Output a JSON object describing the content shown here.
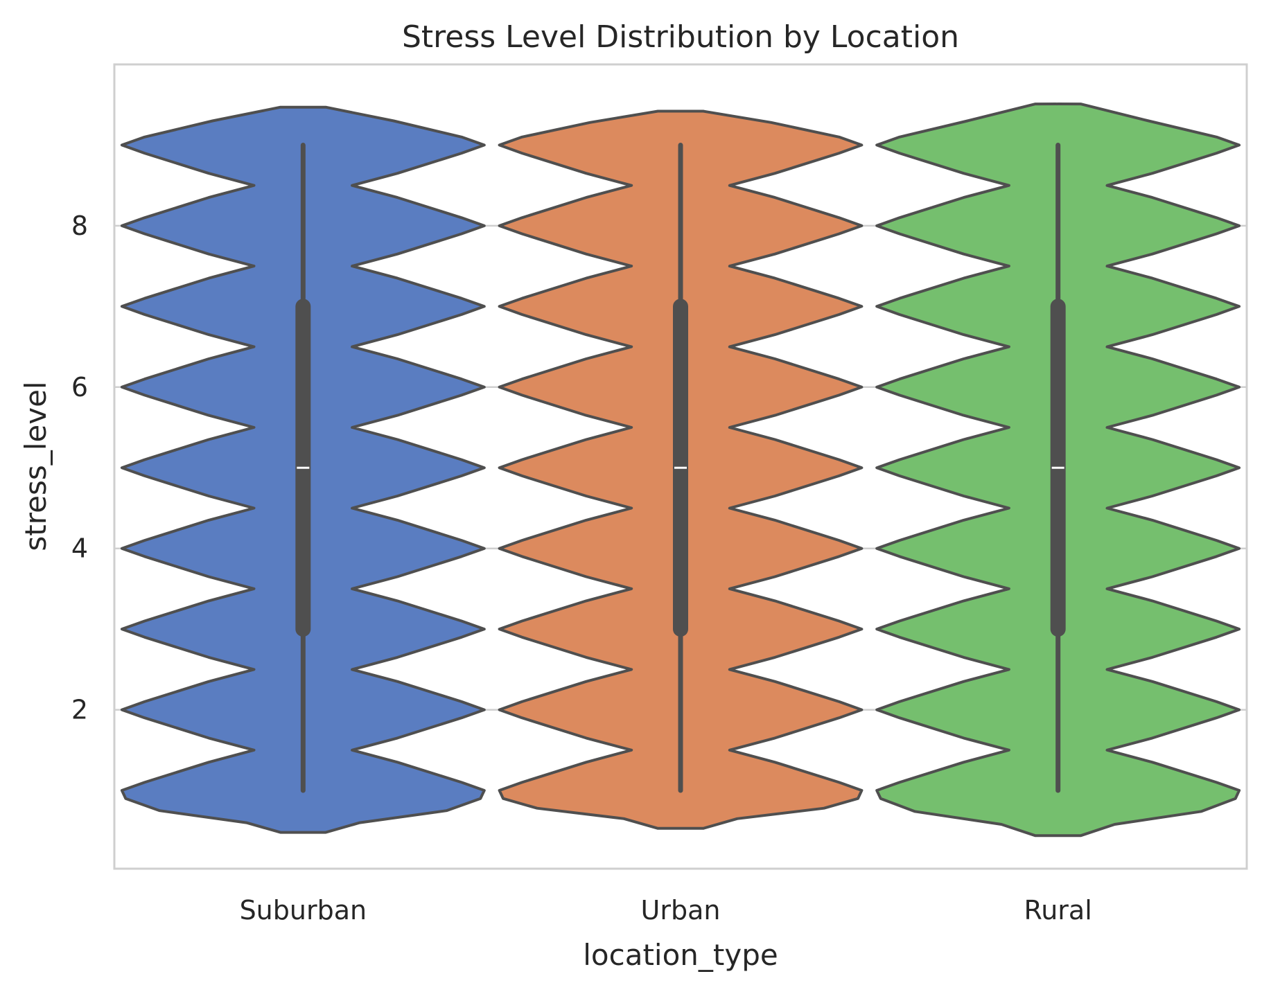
{
  "chart_data": {
    "type": "violin",
    "title": "Stress Level Distribution by Location",
    "xlabel": "location_type",
    "ylabel": "stress_level",
    "categories": [
      "Suburban",
      "Urban",
      "Rural"
    ],
    "colors": [
      "#5a7dc1",
      "#dc8a5e",
      "#75bf6e"
    ],
    "ylim": [
      0.03,
      10.0
    ],
    "yticks": [
      2,
      4,
      6,
      8
    ],
    "yticklabels": [
      "2",
      "4",
      "6",
      "8"
    ],
    "grid": "horizontal",
    "violins": [
      {
        "name": "Suburban",
        "kde_range": [
          0.48,
          9.47
        ],
        "min": 1,
        "q1": 3,
        "median": 5,
        "q3": 7,
        "max": 9,
        "profile": [
          [
            0.48,
            0.06
          ],
          [
            0.6,
            0.15
          ],
          [
            0.75,
            0.38
          ],
          [
            0.9,
            0.47
          ],
          [
            1.0,
            0.48
          ],
          [
            1.1,
            0.42
          ],
          [
            1.35,
            0.25
          ],
          [
            1.5,
            0.13
          ],
          [
            1.65,
            0.25
          ],
          [
            1.9,
            0.42
          ],
          [
            2.0,
            0.48
          ],
          [
            2.1,
            0.42
          ],
          [
            2.35,
            0.25
          ],
          [
            2.5,
            0.13
          ],
          [
            2.65,
            0.25
          ],
          [
            2.9,
            0.42
          ],
          [
            3.0,
            0.48
          ],
          [
            3.1,
            0.42
          ],
          [
            3.35,
            0.25
          ],
          [
            3.5,
            0.13
          ],
          [
            3.65,
            0.25
          ],
          [
            3.9,
            0.42
          ],
          [
            4.0,
            0.48
          ],
          [
            4.1,
            0.42
          ],
          [
            4.35,
            0.25
          ],
          [
            4.5,
            0.13
          ],
          [
            4.65,
            0.25
          ],
          [
            4.9,
            0.42
          ],
          [
            5.0,
            0.48
          ],
          [
            5.1,
            0.42
          ],
          [
            5.35,
            0.25
          ],
          [
            5.5,
            0.13
          ],
          [
            5.65,
            0.25
          ],
          [
            5.9,
            0.42
          ],
          [
            6.0,
            0.48
          ],
          [
            6.1,
            0.42
          ],
          [
            6.35,
            0.25
          ],
          [
            6.5,
            0.13
          ],
          [
            6.65,
            0.25
          ],
          [
            6.9,
            0.42
          ],
          [
            7.0,
            0.48
          ],
          [
            7.1,
            0.42
          ],
          [
            7.35,
            0.25
          ],
          [
            7.5,
            0.13
          ],
          [
            7.65,
            0.25
          ],
          [
            7.9,
            0.42
          ],
          [
            8.0,
            0.48
          ],
          [
            8.1,
            0.42
          ],
          [
            8.35,
            0.25
          ],
          [
            8.5,
            0.13
          ],
          [
            8.65,
            0.25
          ],
          [
            8.9,
            0.42
          ],
          [
            9.0,
            0.48
          ],
          [
            9.1,
            0.42
          ],
          [
            9.3,
            0.24
          ],
          [
            9.47,
            0.06
          ]
        ]
      },
      {
        "name": "Urban",
        "kde_range": [
          0.53,
          9.42
        ],
        "min": 1,
        "q1": 3,
        "median": 5,
        "q3": 7,
        "max": 9,
        "profile": [
          [
            0.53,
            0.06
          ],
          [
            0.65,
            0.15
          ],
          [
            0.78,
            0.38
          ],
          [
            0.9,
            0.47
          ],
          [
            1.0,
            0.48
          ],
          [
            1.1,
            0.42
          ],
          [
            1.35,
            0.25
          ],
          [
            1.5,
            0.13
          ],
          [
            1.65,
            0.25
          ],
          [
            1.9,
            0.42
          ],
          [
            2.0,
            0.48
          ],
          [
            2.1,
            0.42
          ],
          [
            2.35,
            0.25
          ],
          [
            2.5,
            0.13
          ],
          [
            2.65,
            0.25
          ],
          [
            2.9,
            0.42
          ],
          [
            3.0,
            0.48
          ],
          [
            3.1,
            0.42
          ],
          [
            3.35,
            0.25
          ],
          [
            3.5,
            0.13
          ],
          [
            3.65,
            0.25
          ],
          [
            3.9,
            0.42
          ],
          [
            4.0,
            0.48
          ],
          [
            4.1,
            0.42
          ],
          [
            4.35,
            0.25
          ],
          [
            4.5,
            0.13
          ],
          [
            4.65,
            0.25
          ],
          [
            4.9,
            0.42
          ],
          [
            5.0,
            0.48
          ],
          [
            5.1,
            0.42
          ],
          [
            5.35,
            0.25
          ],
          [
            5.5,
            0.13
          ],
          [
            5.65,
            0.25
          ],
          [
            5.9,
            0.42
          ],
          [
            6.0,
            0.48
          ],
          [
            6.1,
            0.42
          ],
          [
            6.35,
            0.25
          ],
          [
            6.5,
            0.13
          ],
          [
            6.65,
            0.25
          ],
          [
            6.9,
            0.42
          ],
          [
            7.0,
            0.48
          ],
          [
            7.1,
            0.42
          ],
          [
            7.35,
            0.25
          ],
          [
            7.5,
            0.13
          ],
          [
            7.65,
            0.25
          ],
          [
            7.9,
            0.42
          ],
          [
            8.0,
            0.48
          ],
          [
            8.1,
            0.42
          ],
          [
            8.35,
            0.25
          ],
          [
            8.5,
            0.13
          ],
          [
            8.65,
            0.25
          ],
          [
            8.9,
            0.42
          ],
          [
            9.0,
            0.48
          ],
          [
            9.1,
            0.42
          ],
          [
            9.28,
            0.24
          ],
          [
            9.42,
            0.06
          ]
        ]
      },
      {
        "name": "Rural",
        "kde_range": [
          0.44,
          9.51
        ],
        "min": 1,
        "q1": 3,
        "median": 5,
        "q3": 7,
        "max": 9,
        "profile": [
          [
            0.44,
            0.06
          ],
          [
            0.58,
            0.15
          ],
          [
            0.74,
            0.38
          ],
          [
            0.9,
            0.47
          ],
          [
            1.0,
            0.48
          ],
          [
            1.1,
            0.42
          ],
          [
            1.35,
            0.25
          ],
          [
            1.5,
            0.13
          ],
          [
            1.65,
            0.25
          ],
          [
            1.9,
            0.42
          ],
          [
            2.0,
            0.48
          ],
          [
            2.1,
            0.42
          ],
          [
            2.35,
            0.25
          ],
          [
            2.5,
            0.13
          ],
          [
            2.65,
            0.25
          ],
          [
            2.9,
            0.42
          ],
          [
            3.0,
            0.48
          ],
          [
            3.1,
            0.42
          ],
          [
            3.35,
            0.25
          ],
          [
            3.5,
            0.13
          ],
          [
            3.65,
            0.25
          ],
          [
            3.9,
            0.42
          ],
          [
            4.0,
            0.48
          ],
          [
            4.1,
            0.42
          ],
          [
            4.35,
            0.25
          ],
          [
            4.5,
            0.13
          ],
          [
            4.65,
            0.25
          ],
          [
            4.9,
            0.42
          ],
          [
            5.0,
            0.48
          ],
          [
            5.1,
            0.42
          ],
          [
            5.35,
            0.25
          ],
          [
            5.5,
            0.13
          ],
          [
            5.65,
            0.25
          ],
          [
            5.9,
            0.42
          ],
          [
            6.0,
            0.48
          ],
          [
            6.1,
            0.42
          ],
          [
            6.35,
            0.25
          ],
          [
            6.5,
            0.13
          ],
          [
            6.65,
            0.25
          ],
          [
            6.9,
            0.42
          ],
          [
            7.0,
            0.48
          ],
          [
            7.1,
            0.42
          ],
          [
            7.35,
            0.25
          ],
          [
            7.5,
            0.13
          ],
          [
            7.65,
            0.25
          ],
          [
            7.9,
            0.42
          ],
          [
            8.0,
            0.48
          ],
          [
            8.1,
            0.42
          ],
          [
            8.35,
            0.25
          ],
          [
            8.5,
            0.13
          ],
          [
            8.65,
            0.25
          ],
          [
            8.9,
            0.42
          ],
          [
            9.0,
            0.48
          ],
          [
            9.1,
            0.42
          ],
          [
            9.3,
            0.24
          ],
          [
            9.51,
            0.06
          ]
        ]
      }
    ]
  }
}
